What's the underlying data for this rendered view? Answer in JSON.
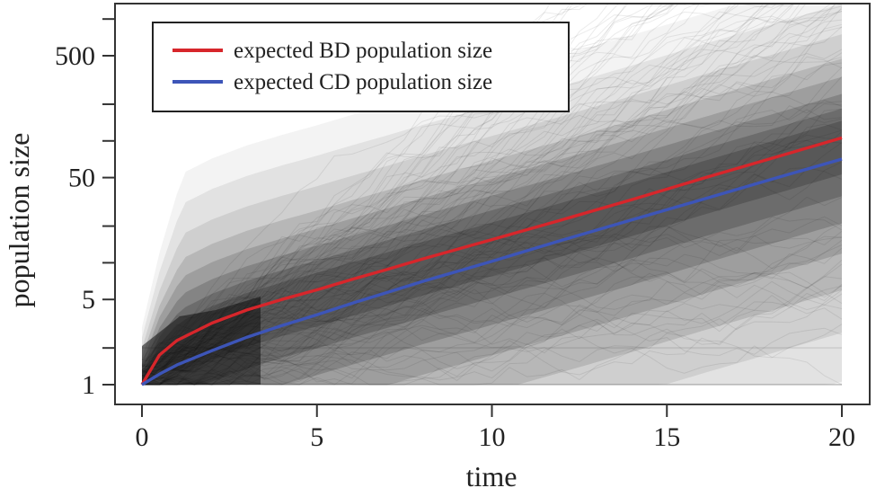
{
  "chart_data": {
    "type": "line",
    "title": "",
    "xlabel": "time",
    "ylabel": "population size",
    "xlim": [
      0,
      20
    ],
    "ylim": [
      1,
      1100
    ],
    "yscale": "log",
    "x_ticks": [
      0,
      5,
      10,
      15,
      20
    ],
    "x_tick_labels": [
      "0",
      "5",
      "10",
      "15",
      "20"
    ],
    "y_ticks": [
      1,
      5,
      50,
      500
    ],
    "y_tick_labels": [
      "1",
      "5",
      "50",
      "500"
    ],
    "y_minor_ticks": [
      2,
      10,
      20,
      100,
      200,
      1000
    ],
    "grid": false,
    "legend_position": "top-left",
    "series": [
      {
        "name": "expected BD population size",
        "color": "#d7262b",
        "x": [
          0,
          0.5,
          1,
          2,
          3,
          4,
          5,
          6,
          7,
          8,
          10,
          12,
          14,
          16,
          18,
          20
        ],
        "values": [
          1,
          1.75,
          2.3,
          3.2,
          4.1,
          5.0,
          6.0,
          7.3,
          8.8,
          10.7,
          15.5,
          22.5,
          33,
          49,
          72,
          106
        ]
      },
      {
        "name": "expected CD population size",
        "color": "#3d55b8",
        "x": [
          0,
          0.5,
          1,
          2,
          3,
          4,
          5,
          6,
          7,
          8,
          10,
          12,
          14,
          16,
          18,
          20
        ],
        "values": [
          1,
          1.22,
          1.45,
          1.9,
          2.45,
          3.05,
          3.75,
          4.65,
          5.7,
          7.0,
          10.3,
          15.3,
          22.5,
          33,
          48.5,
          71
        ]
      }
    ],
    "background": "simulated trajectories (grey shading)",
    "colors": {
      "trajectories": "#1a1a1a",
      "axis": "#333333"
    }
  }
}
